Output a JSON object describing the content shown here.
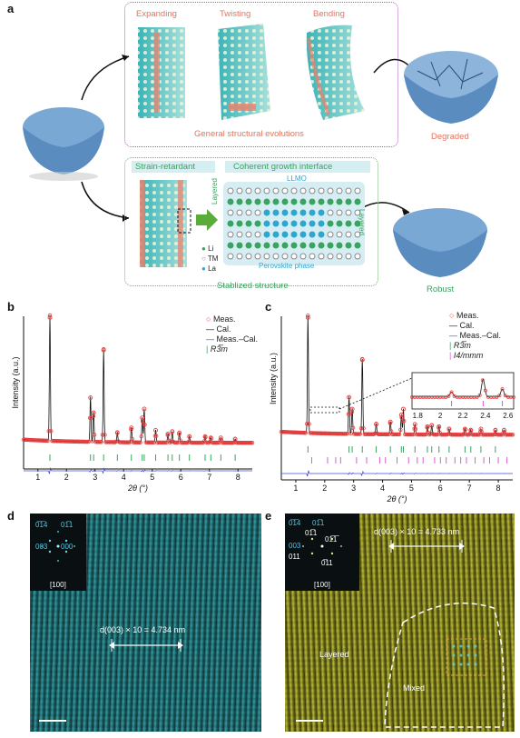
{
  "panel_a": {
    "label": "a",
    "top_box": {
      "titles": [
        "Expanding",
        "Twisting",
        "Bending"
      ],
      "caption": "General structural evolutions"
    },
    "degraded_label": "Degraded",
    "bottom_box": {
      "strain_title": "Strain-retardant",
      "coherent_title": "Coherent growth interface",
      "llmo_label": "LLMO",
      "layered_left": "Layered",
      "layered_right": "Layered",
      "perovskite_label": "Perovskite phase",
      "legend": [
        "Li",
        "TM",
        "La"
      ],
      "caption": "Stablized structure"
    },
    "robust_label": "Robust"
  },
  "panel_b": {
    "label": "b",
    "legend": [
      "Meas.",
      "Cal.",
      "Meas.–Cal.",
      "R3̅m"
    ],
    "colors": {
      "meas": "#e83b3b",
      "cal": "#111111",
      "diff": "#3c4bd8",
      "r3m": "#3aa35f"
    }
  },
  "panel_c": {
    "label": "c",
    "legend": [
      "Meas.",
      "Cal.",
      "Meas.–Cal.",
      "R3̅m",
      "I4/mmm"
    ],
    "colors": {
      "meas": "#e83b3b",
      "cal": "#111111",
      "diff": "#3c4bd8",
      "r3m": "#3aa35f",
      "i4": "#e05ad0"
    }
  },
  "panel_d": {
    "label": "d",
    "fft_labels": [
      "0̅1̅4",
      "01̅1",
      "003",
      "000"
    ],
    "zone": "[100]",
    "measure": "d(003) × 10 = 4.734 nm"
  },
  "panel_e": {
    "label": "e",
    "fft_labels": [
      "0̅1̅4",
      "01̅1",
      "01̅1",
      "01̅1̅",
      "003",
      "011",
      "0̅11"
    ],
    "zone": "[100]",
    "measure": "d(003) × 10 = 4.733 nm",
    "region_layered": "Layered",
    "region_mixed": "Mixed"
  },
  "chart_data": [
    {
      "type": "line",
      "title": "",
      "xlabel": "2θ (°)",
      "ylabel": "Intensity (a.u.)",
      "xlim": [
        0.5,
        8.5
      ],
      "xticks": [
        1,
        2,
        3,
        4,
        5,
        6,
        7,
        8
      ],
      "peaks_x": [
        1.42,
        2.84,
        2.95,
        3.3,
        3.78,
        4.27,
        4.65,
        4.72,
        5.12,
        5.55,
        5.7,
        5.95,
        6.3,
        6.85,
        7.05,
        7.4,
        7.9
      ],
      "peaks_rel": [
        1.0,
        0.36,
        0.24,
        0.74,
        0.08,
        0.12,
        0.2,
        0.27,
        0.1,
        0.07,
        0.09,
        0.08,
        0.05,
        0.05,
        0.04,
        0.04,
        0.03
      ],
      "series": [
        {
          "name": "Meas."
        },
        {
          "name": "Cal."
        },
        {
          "name": "Meas.–Cal."
        },
        {
          "name": "R3̅m"
        }
      ],
      "ticks_r3m": [
        1.42,
        2.84,
        2.95,
        3.3,
        3.78,
        4.27,
        4.65,
        4.72,
        5.12,
        5.55,
        5.7,
        5.95,
        6.3,
        6.85,
        7.05,
        7.4,
        7.9
      ]
    },
    {
      "type": "line",
      "title": "",
      "xlabel": "2θ (°)",
      "ylabel": "Intensity (a.u.)",
      "xlim": [
        0.5,
        8.5
      ],
      "xticks": [
        1,
        2,
        3,
        4,
        5,
        6,
        7,
        8
      ],
      "peaks_x": [
        1.42,
        2.84,
        2.95,
        3.3,
        3.78,
        4.27,
        4.65,
        4.72,
        5.12,
        5.55,
        5.7,
        5.95,
        6.3,
        6.85,
        7.05,
        7.4,
        7.9,
        8.2
      ],
      "peaks_rel": [
        1.0,
        0.32,
        0.22,
        0.64,
        0.09,
        0.11,
        0.17,
        0.22,
        0.09,
        0.07,
        0.08,
        0.07,
        0.05,
        0.05,
        0.04,
        0.05,
        0.04,
        0.04
      ],
      "series": [
        {
          "name": "Meas."
        },
        {
          "name": "Cal."
        },
        {
          "name": "Meas.–Cal."
        },
        {
          "name": "R3̅m"
        },
        {
          "name": "I4/mmm"
        }
      ],
      "ticks_r3m": [
        1.42,
        2.84,
        2.95,
        3.3,
        3.78,
        4.27,
        4.65,
        4.72,
        5.12,
        5.55,
        5.7,
        5.95,
        6.3,
        6.85,
        7.05,
        7.4,
        7.9
      ],
      "ticks_i4": [
        1.55,
        2.1,
        2.38,
        2.55,
        3.1,
        3.45,
        3.9,
        4.1,
        4.5,
        4.9,
        5.2,
        5.4,
        5.8,
        6.0,
        6.2,
        6.5,
        6.7,
        6.9,
        7.2,
        7.5,
        7.7,
        8.0,
        8.3
      ],
      "inset": {
        "xlim": [
          1.75,
          2.65
        ],
        "xticks": [
          1.8,
          2.0,
          2.2,
          2.4,
          2.6
        ],
        "peaks_x": [
          2.1,
          2.38,
          2.55
        ],
        "peaks_rel": [
          0.25,
          0.9,
          0.4
        ]
      }
    }
  ]
}
